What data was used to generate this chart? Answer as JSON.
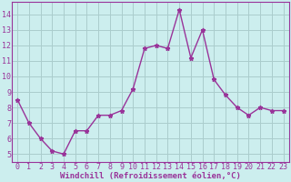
{
  "x": [
    0,
    1,
    2,
    3,
    4,
    5,
    6,
    7,
    8,
    9,
    10,
    11,
    12,
    13,
    14,
    15,
    16,
    17,
    18,
    19,
    20,
    21,
    22,
    23
  ],
  "y": [
    8.5,
    7.0,
    6.0,
    5.2,
    5.0,
    6.5,
    6.5,
    7.5,
    7.5,
    7.8,
    9.2,
    11.8,
    12.0,
    11.8,
    14.3,
    11.2,
    13.0,
    9.8,
    8.8,
    8.0,
    7.5,
    8.0,
    7.8,
    7.8
  ],
  "line_color": "#993399",
  "marker": "*",
  "marker_size": 3.5,
  "bg_color": "#cceeee",
  "grid_color": "#aacccc",
  "xlabel": "Windchill (Refroidissement éolien,°C)",
  "ylim": [
    4.5,
    14.8
  ],
  "xlim": [
    -0.5,
    23.5
  ],
  "yticks": [
    5,
    6,
    7,
    8,
    9,
    10,
    11,
    12,
    13,
    14
  ],
  "xticks": [
    0,
    1,
    2,
    3,
    4,
    5,
    6,
    7,
    8,
    9,
    10,
    11,
    12,
    13,
    14,
    15,
    16,
    17,
    18,
    19,
    20,
    21,
    22,
    23
  ],
  "tick_label_color": "#993399",
  "tick_label_fontsize": 6.0,
  "xlabel_fontsize": 6.5,
  "xlabel_color": "#993399",
  "spine_color": "#993399",
  "line_width": 1.0
}
